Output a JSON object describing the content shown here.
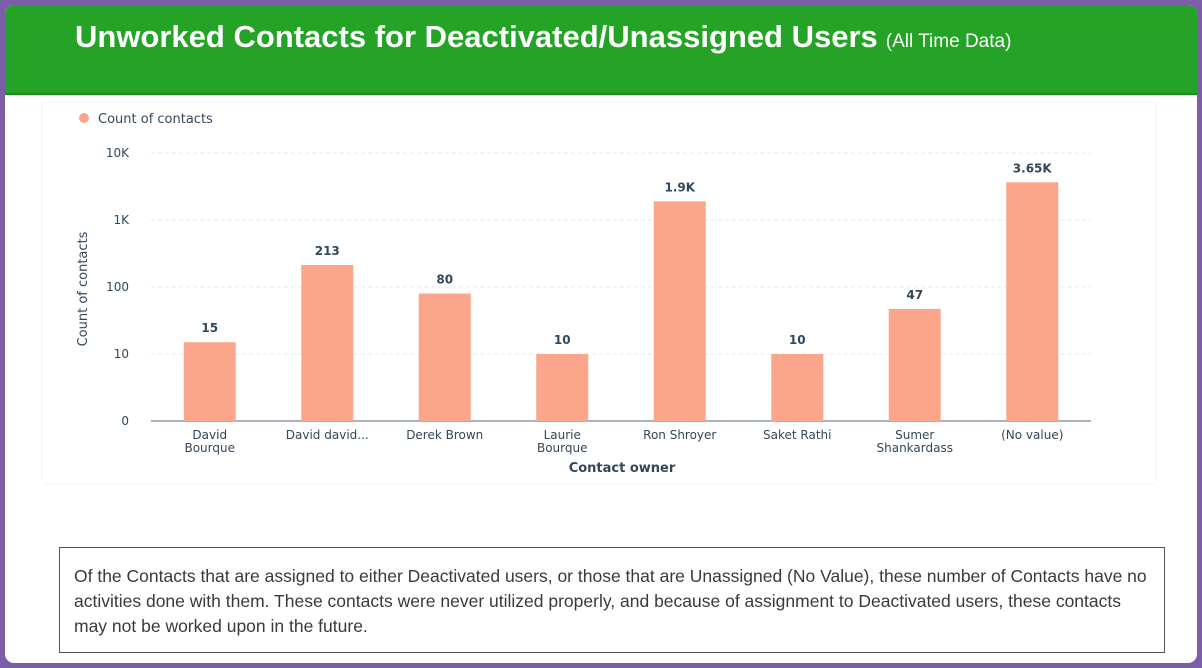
{
  "header": {
    "title": "Unworked Contacts for Deactivated/Unassigned Users",
    "subtitle": "(All Time Data)"
  },
  "chart_data": {
    "type": "bar",
    "legend": {
      "label": "Count of contacts",
      "placement": "top-left"
    },
    "xlabel": "Contact owner",
    "ylabel": "Count of contacts",
    "yscale": "log",
    "yticks": [
      "0",
      "10",
      "100",
      "1K",
      "10K"
    ],
    "ylim": [
      1,
      10000
    ],
    "grid": true,
    "bar_color": "#fba58b",
    "categories": [
      [
        "David",
        "Bourque"
      ],
      [
        "David david..."
      ],
      [
        "Derek Brown"
      ],
      [
        "Laurie",
        "Bourque"
      ],
      [
        "Ron Shroyer"
      ],
      [
        "Saket Rathi"
      ],
      [
        "Sumer",
        "Shankardass"
      ],
      [
        "(No value)"
      ]
    ],
    "values": [
      15,
      213,
      80,
      10,
      1900,
      10,
      47,
      3650
    ],
    "data_labels": [
      "15",
      "213",
      "80",
      "10",
      "1.9K",
      "10",
      "47",
      "3.65K"
    ]
  },
  "note": {
    "text": "Of the Contacts that are assigned to either Deactivated users, or those that are Unassigned (No Value), these number of Contacts have no activities done with them. These contacts were never utilized properly, and because of assignment to Deactivated users, these contacts may not be worked upon in the future."
  },
  "colors": {
    "header": "#24a327",
    "border": "#7c5ea6",
    "bar": "#fba58b"
  }
}
